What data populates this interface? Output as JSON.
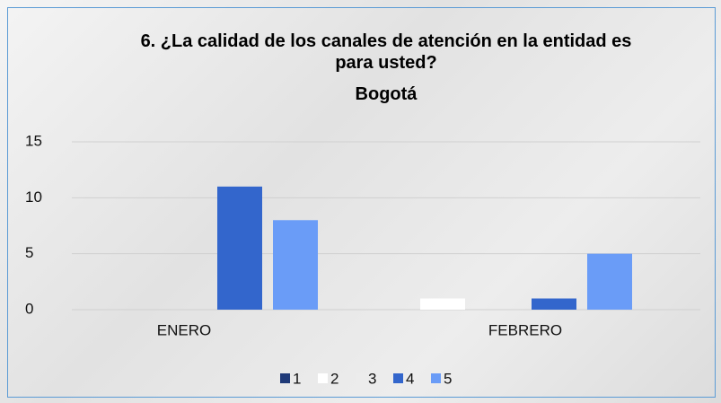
{
  "chart_data": {
    "type": "bar",
    "title": "6. ¿La calidad de los canales de atención en la entidad es para usted?",
    "subtitle": "Bogotá",
    "categories": [
      "ENERO",
      "FEBRERO"
    ],
    "series": [
      {
        "name": "1",
        "color": "#1f3a78",
        "values": [
          0,
          0
        ]
      },
      {
        "name": "2",
        "color": "#ffffff",
        "values": [
          0,
          1
        ]
      },
      {
        "name": "3",
        "color": "#ececec",
        "values": [
          0,
          0
        ]
      },
      {
        "name": "4",
        "color": "#3366cc",
        "values": [
          11,
          1
        ]
      },
      {
        "name": "5",
        "color": "#6a9cf7",
        "values": [
          8,
          5
        ]
      }
    ],
    "ylim": [
      0,
      15
    ],
    "yticks": [
      0,
      5,
      10,
      15
    ],
    "grid": true,
    "legend": "bottom"
  }
}
